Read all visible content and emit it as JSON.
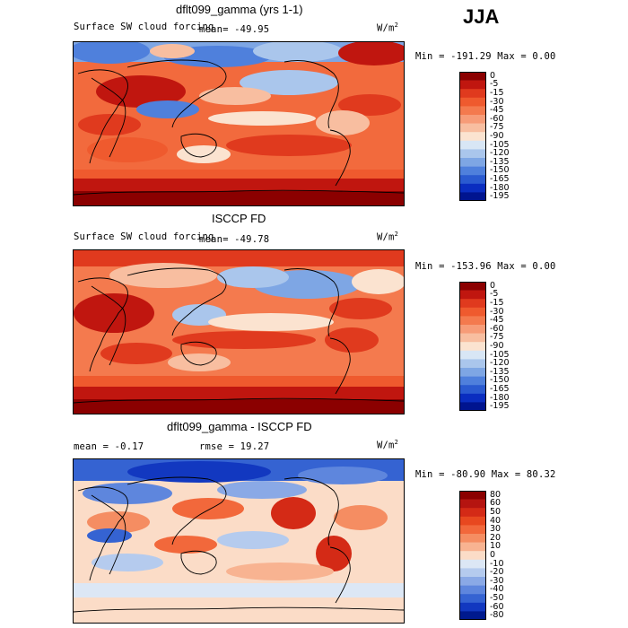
{
  "season": "JJA",
  "panels": [
    {
      "title": "dflt099_gamma (yrs 1-1)",
      "subtitle": "Surface SW cloud forcing",
      "mean_text": "mean=  -49.95",
      "units": "W/m",
      "units_sup": "2",
      "minmax": "Min = -191.29  Max =    0.00",
      "colorbar": {
        "levels": [
          "0",
          "-5",
          "-15",
          "-30",
          "-45",
          "-60",
          "-75",
          "-90",
          "-105",
          "-120",
          "-135",
          "-150",
          "-165",
          "-180",
          "-195"
        ],
        "colors": [
          "#8b0000",
          "#c0160f",
          "#e03a1e",
          "#ef5a2e",
          "#f47a4e",
          "#f79c78",
          "#f8bea0",
          "#fbe3d0",
          "#d8e6f5",
          "#aac6ec",
          "#7ea6e4",
          "#4f80dc",
          "#2a5ad0",
          "#0a2dc0",
          "#00148f"
        ]
      }
    },
    {
      "title": "ISCCP FD",
      "subtitle": "Surface SW cloud forcing",
      "mean_text": "mean=  -49.78",
      "units": "W/m",
      "units_sup": "2",
      "minmax": "Min = -153.96  Max =    0.00",
      "colorbar": {
        "levels": [
          "0",
          "-5",
          "-15",
          "-30",
          "-45",
          "-60",
          "-75",
          "-90",
          "-105",
          "-120",
          "-135",
          "-150",
          "-165",
          "-180",
          "-195"
        ],
        "colors": [
          "#8b0000",
          "#c0160f",
          "#e03a1e",
          "#ef5a2e",
          "#f47a4e",
          "#f79c78",
          "#f8bea0",
          "#fbe3d0",
          "#d8e6f5",
          "#aac6ec",
          "#7ea6e4",
          "#4f80dc",
          "#2a5ad0",
          "#0a2dc0",
          "#00148f"
        ]
      }
    },
    {
      "title": "dflt099_gamma - ISCCP FD",
      "subtitle": "",
      "mean_text": "mean =   -0.17",
      "rmse_text": "rmse =   19.27",
      "units": "W/m",
      "units_sup": "2",
      "minmax": "Min = -80.90  Max =  80.32",
      "colorbar": {
        "levels": [
          "80",
          "60",
          "50",
          "40",
          "30",
          "20",
          "10",
          "0",
          "-10",
          "-20",
          "-30",
          "-40",
          "-50",
          "-60",
          "-80"
        ],
        "colors": [
          "#8b0000",
          "#b51410",
          "#d42a16",
          "#e8481f",
          "#f2683b",
          "#f58d62",
          "#f8b391",
          "#fbdcc7",
          "#dce7f5",
          "#b5cbee",
          "#8aa9e6",
          "#5e86dd",
          "#3563d2",
          "#1238c0",
          "#001a8e"
        ]
      }
    }
  ],
  "chart_data": [
    {
      "type": "heatmap",
      "title": "dflt099_gamma (yrs 1-1)",
      "subtitle": "Surface SW cloud forcing",
      "season": "JJA",
      "mean": -49.95,
      "min": -191.29,
      "max": 0.0,
      "units": "W/m^2"
    },
    {
      "type": "heatmap",
      "title": "ISCCP FD",
      "subtitle": "Surface SW cloud forcing",
      "season": "JJA",
      "mean": -49.78,
      "min": -153.96,
      "max": 0.0,
      "units": "W/m^2"
    },
    {
      "type": "heatmap",
      "title": "dflt099_gamma - ISCCP FD",
      "season": "JJA",
      "mean": -0.17,
      "rmse": 19.27,
      "min": -80.9,
      "max": 80.32,
      "units": "W/m^2"
    }
  ]
}
